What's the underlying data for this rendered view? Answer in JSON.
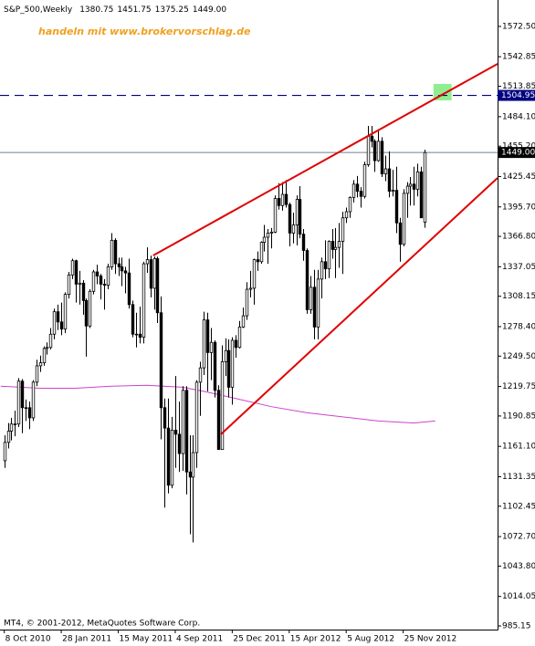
{
  "chart_data": {
    "type": "candlestick",
    "header": {
      "symbol": "S&P_500,Weekly",
      "ohlc_labels": [
        "1380.75",
        "1451.75",
        "1375.25",
        "1449.00"
      ]
    },
    "annotation": "handeln mit www.brokervorschlag.de",
    "footer": "MT4, © 2001-2012, MetaQuotes Software Corp.",
    "up_color": "#ffffff",
    "down_color": "#000000",
    "outline_color": "#000000",
    "xlim": [
      -1.2,
      138.5
    ],
    "xticks": [
      {
        "value": 0,
        "label": "8 Oct 2010"
      },
      {
        "value": 16,
        "label": "28 Jan 2011"
      },
      {
        "value": 32,
        "label": "15 May 2011"
      },
      {
        "value": 48,
        "label": "4 Sep 2011"
      },
      {
        "value": 64,
        "label": "25 Dec 2011"
      },
      {
        "value": 80,
        "label": "15 Apr 2012"
      },
      {
        "value": 96,
        "label": "5 Aug 2012"
      },
      {
        "value": 112,
        "label": "25 Nov 2012"
      }
    ],
    "ylim": [
      981.6,
      1598.4
    ],
    "yticks": [
      {
        "value": 1572.5,
        "label": "1572.50"
      },
      {
        "value": 1542.85,
        "label": "1542.85"
      },
      {
        "value": 1513.85,
        "label": "1513.85"
      },
      {
        "value": 1484.1,
        "label": "1484.10"
      },
      {
        "value": 1455.2,
        "label": "1455.20"
      },
      {
        "value": 1425.45,
        "label": "1425.45"
      },
      {
        "value": 1395.7,
        "label": "1395.70"
      },
      {
        "value": 1366.8,
        "label": "1366.80"
      },
      {
        "value": 1337.05,
        "label": "1337.05"
      },
      {
        "value": 1308.15,
        "label": "1308.15"
      },
      {
        "value": 1278.4,
        "label": "1278.40"
      },
      {
        "value": 1249.5,
        "label": "1249.50"
      },
      {
        "value": 1219.75,
        "label": "1219.75"
      },
      {
        "value": 1190.85,
        "label": "1190.85"
      },
      {
        "value": 1161.1,
        "label": "1161.10"
      },
      {
        "value": 1131.35,
        "label": "1131.35"
      },
      {
        "value": 1102.45,
        "label": "1102.45"
      },
      {
        "value": 1072.7,
        "label": "1072.70"
      },
      {
        "value": 1043.8,
        "label": "1043.80"
      },
      {
        "value": 1014.05,
        "label": "1014.05"
      },
      {
        "value": 985.15,
        "label": "985.15"
      }
    ],
    "levels": [
      {
        "value": 1504.95,
        "label": "1504.95",
        "color": "#000080",
        "style": "dashed"
      },
      {
        "value": 1449.0,
        "label": "1449.00",
        "color": "#708090",
        "box": "#000000",
        "style": "solid"
      }
    ],
    "trendlines": [
      {
        "x": [
          41.8,
          138.5
        ],
        "values": [
          1348.1,
          1535.8
        ],
        "color": "#e00000"
      },
      {
        "x": [
          60.8,
          138.5
        ],
        "values": [
          1172.9,
          1424.1
        ],
        "color": "#e00000"
      }
    ],
    "zone": {
      "x": [
        120.5,
        125.6
      ],
      "values": [
        1500.1,
        1516.2
      ],
      "color": "#90ee90"
    },
    "ma": {
      "color": "#cc44cc",
      "x": [
        -1,
        10,
        20,
        30,
        40,
        50,
        56,
        65,
        75,
        85,
        95,
        105,
        115,
        121
      ],
      "values": [
        1220,
        1218,
        1218,
        1220,
        1221,
        1219,
        1215,
        1208,
        1200,
        1194,
        1190,
        1186,
        1184,
        1186
      ]
    },
    "candles": [
      [
        1147,
        1172,
        1140,
        1165
      ],
      [
        1165,
        1184,
        1159,
        1176
      ],
      [
        1176,
        1189,
        1167,
        1183
      ],
      [
        1183,
        1196,
        1171,
        1183
      ],
      [
        1183,
        1228,
        1180,
        1225
      ],
      [
        1225,
        1227,
        1174,
        1199
      ],
      [
        1199,
        1207,
        1186,
        1199
      ],
      [
        1199,
        1205,
        1178,
        1189
      ],
      [
        1189,
        1226,
        1186,
        1224
      ],
      [
        1224,
        1246,
        1220,
        1240
      ],
      [
        1240,
        1250,
        1234,
        1243
      ],
      [
        1243,
        1259,
        1240,
        1257
      ],
      [
        1257,
        1263,
        1251,
        1258
      ],
      [
        1258,
        1277,
        1256,
        1271
      ],
      [
        1271,
        1296,
        1266,
        1293
      ],
      [
        1293,
        1300,
        1275,
        1283
      ],
      [
        1283,
        1302,
        1270,
        1276
      ],
      [
        1276,
        1312,
        1272,
        1310
      ],
      [
        1310,
        1332,
        1306,
        1329
      ],
      [
        1329,
        1345,
        1325,
        1343
      ],
      [
        1343,
        1344,
        1302,
        1320
      ],
      [
        1320,
        1333,
        1300,
        1321
      ],
      [
        1321,
        1324,
        1290,
        1304
      ],
      [
        1304,
        1306,
        1249,
        1279
      ],
      [
        1279,
        1315,
        1277,
        1313
      ],
      [
        1313,
        1334,
        1310,
        1332
      ],
      [
        1332,
        1339,
        1320,
        1328
      ],
      [
        1328,
        1330,
        1305,
        1320
      ],
      [
        1320,
        1325,
        1295,
        1319
      ],
      [
        1319,
        1340,
        1315,
        1337
      ],
      [
        1337,
        1370,
        1334,
        1363
      ],
      [
        1363,
        1365,
        1330,
        1340
      ],
      [
        1340,
        1346,
        1328,
        1337
      ],
      [
        1337,
        1346,
        1318,
        1333
      ],
      [
        1333,
        1337,
        1311,
        1331
      ],
      [
        1331,
        1345,
        1296,
        1300
      ],
      [
        1300,
        1304,
        1268,
        1271
      ],
      [
        1271,
        1292,
        1258,
        1271
      ],
      [
        1271,
        1298,
        1262,
        1268
      ],
      [
        1268,
        1342,
        1262,
        1340
      ],
      [
        1340,
        1356,
        1331,
        1344
      ],
      [
        1344,
        1348,
        1307,
        1316
      ],
      [
        1316,
        1347,
        1295,
        1345
      ],
      [
        1345,
        1347,
        1282,
        1292
      ],
      [
        1292,
        1308,
        1168,
        1199
      ],
      [
        1199,
        1208,
        1101,
        1179
      ],
      [
        1179,
        1208,
        1115,
        1123
      ],
      [
        1123,
        1190,
        1120,
        1177
      ],
      [
        1177,
        1230,
        1140,
        1173
      ],
      [
        1173,
        1205,
        1136,
        1154
      ],
      [
        1154,
        1220,
        1137,
        1216
      ],
      [
        1216,
        1220,
        1114,
        1136
      ],
      [
        1136,
        1172,
        1075,
        1131
      ],
      [
        1131,
        1172,
        1067,
        1155
      ],
      [
        1155,
        1226,
        1140,
        1224
      ],
      [
        1224,
        1244,
        1191,
        1238
      ],
      [
        1238,
        1293,
        1231,
        1285
      ],
      [
        1285,
        1292,
        1215,
        1253
      ],
      [
        1253,
        1277,
        1226,
        1263
      ],
      [
        1263,
        1265,
        1209,
        1216
      ],
      [
        1216,
        1221,
        1158,
        1158
      ],
      [
        1158,
        1260,
        1158,
        1244
      ],
      [
        1244,
        1267,
        1230,
        1255
      ],
      [
        1255,
        1266,
        1209,
        1219
      ],
      [
        1219,
        1268,
        1202,
        1265
      ],
      [
        1265,
        1270,
        1248,
        1258
      ],
      [
        1258,
        1284,
        1257,
        1278
      ],
      [
        1278,
        1297,
        1277,
        1289
      ],
      [
        1289,
        1322,
        1285,
        1315
      ],
      [
        1315,
        1333,
        1307,
        1316
      ],
      [
        1316,
        1345,
        1300,
        1344
      ],
      [
        1344,
        1352,
        1333,
        1342
      ],
      [
        1342,
        1362,
        1340,
        1361
      ],
      [
        1361,
        1378,
        1352,
        1366
      ],
      [
        1366,
        1374,
        1340,
        1370
      ],
      [
        1370,
        1375,
        1355,
        1371
      ],
      [
        1371,
        1407,
        1370,
        1404
      ],
      [
        1404,
        1419,
        1393,
        1397
      ],
      [
        1397,
        1420,
        1392,
        1408
      ],
      [
        1408,
        1422,
        1395,
        1398
      ],
      [
        1398,
        1400,
        1357,
        1370
      ],
      [
        1370,
        1390,
        1360,
        1378
      ],
      [
        1378,
        1407,
        1358,
        1403
      ],
      [
        1403,
        1416,
        1365,
        1369
      ],
      [
        1369,
        1374,
        1343,
        1353
      ],
      [
        1353,
        1355,
        1291,
        1295
      ],
      [
        1295,
        1328,
        1291,
        1317
      ],
      [
        1317,
        1334,
        1266,
        1278
      ],
      [
        1278,
        1334,
        1266,
        1325
      ],
      [
        1325,
        1346,
        1306,
        1342
      ],
      [
        1342,
        1363,
        1325,
        1335
      ],
      [
        1335,
        1363,
        1326,
        1362
      ],
      [
        1362,
        1374,
        1345,
        1354
      ],
      [
        1354,
        1375,
        1326,
        1356
      ],
      [
        1356,
        1380,
        1336,
        1362
      ],
      [
        1362,
        1391,
        1330,
        1385
      ],
      [
        1385,
        1395,
        1380,
        1391
      ],
      [
        1391,
        1406,
        1385,
        1405
      ],
      [
        1405,
        1422,
        1400,
        1418
      ],
      [
        1418,
        1426,
        1405,
        1411
      ],
      [
        1411,
        1415,
        1395,
        1406
      ],
      [
        1406,
        1440,
        1404,
        1437
      ],
      [
        1437,
        1475,
        1435,
        1465
      ],
      [
        1465,
        1475,
        1454,
        1460
      ],
      [
        1460,
        1462,
        1430,
        1441
      ],
      [
        1441,
        1470,
        1440,
        1460
      ],
      [
        1460,
        1464,
        1425,
        1428
      ],
      [
        1428,
        1446,
        1421,
        1433
      ],
      [
        1433,
        1450,
        1405,
        1411
      ],
      [
        1411,
        1432,
        1406,
        1412
      ],
      [
        1412,
        1435,
        1370,
        1380
      ],
      [
        1380,
        1385,
        1342,
        1359
      ],
      [
        1359,
        1413,
        1357,
        1409
      ],
      [
        1409,
        1420,
        1385,
        1416
      ],
      [
        1416,
        1425,
        1397,
        1418
      ],
      [
        1418,
        1435,
        1397,
        1413
      ],
      [
        1413,
        1438,
        1406,
        1430
      ],
      [
        1430,
        1435,
        1385,
        1385
      ],
      [
        1380.75,
        1451.75,
        1375.25,
        1449.0
      ]
    ]
  }
}
